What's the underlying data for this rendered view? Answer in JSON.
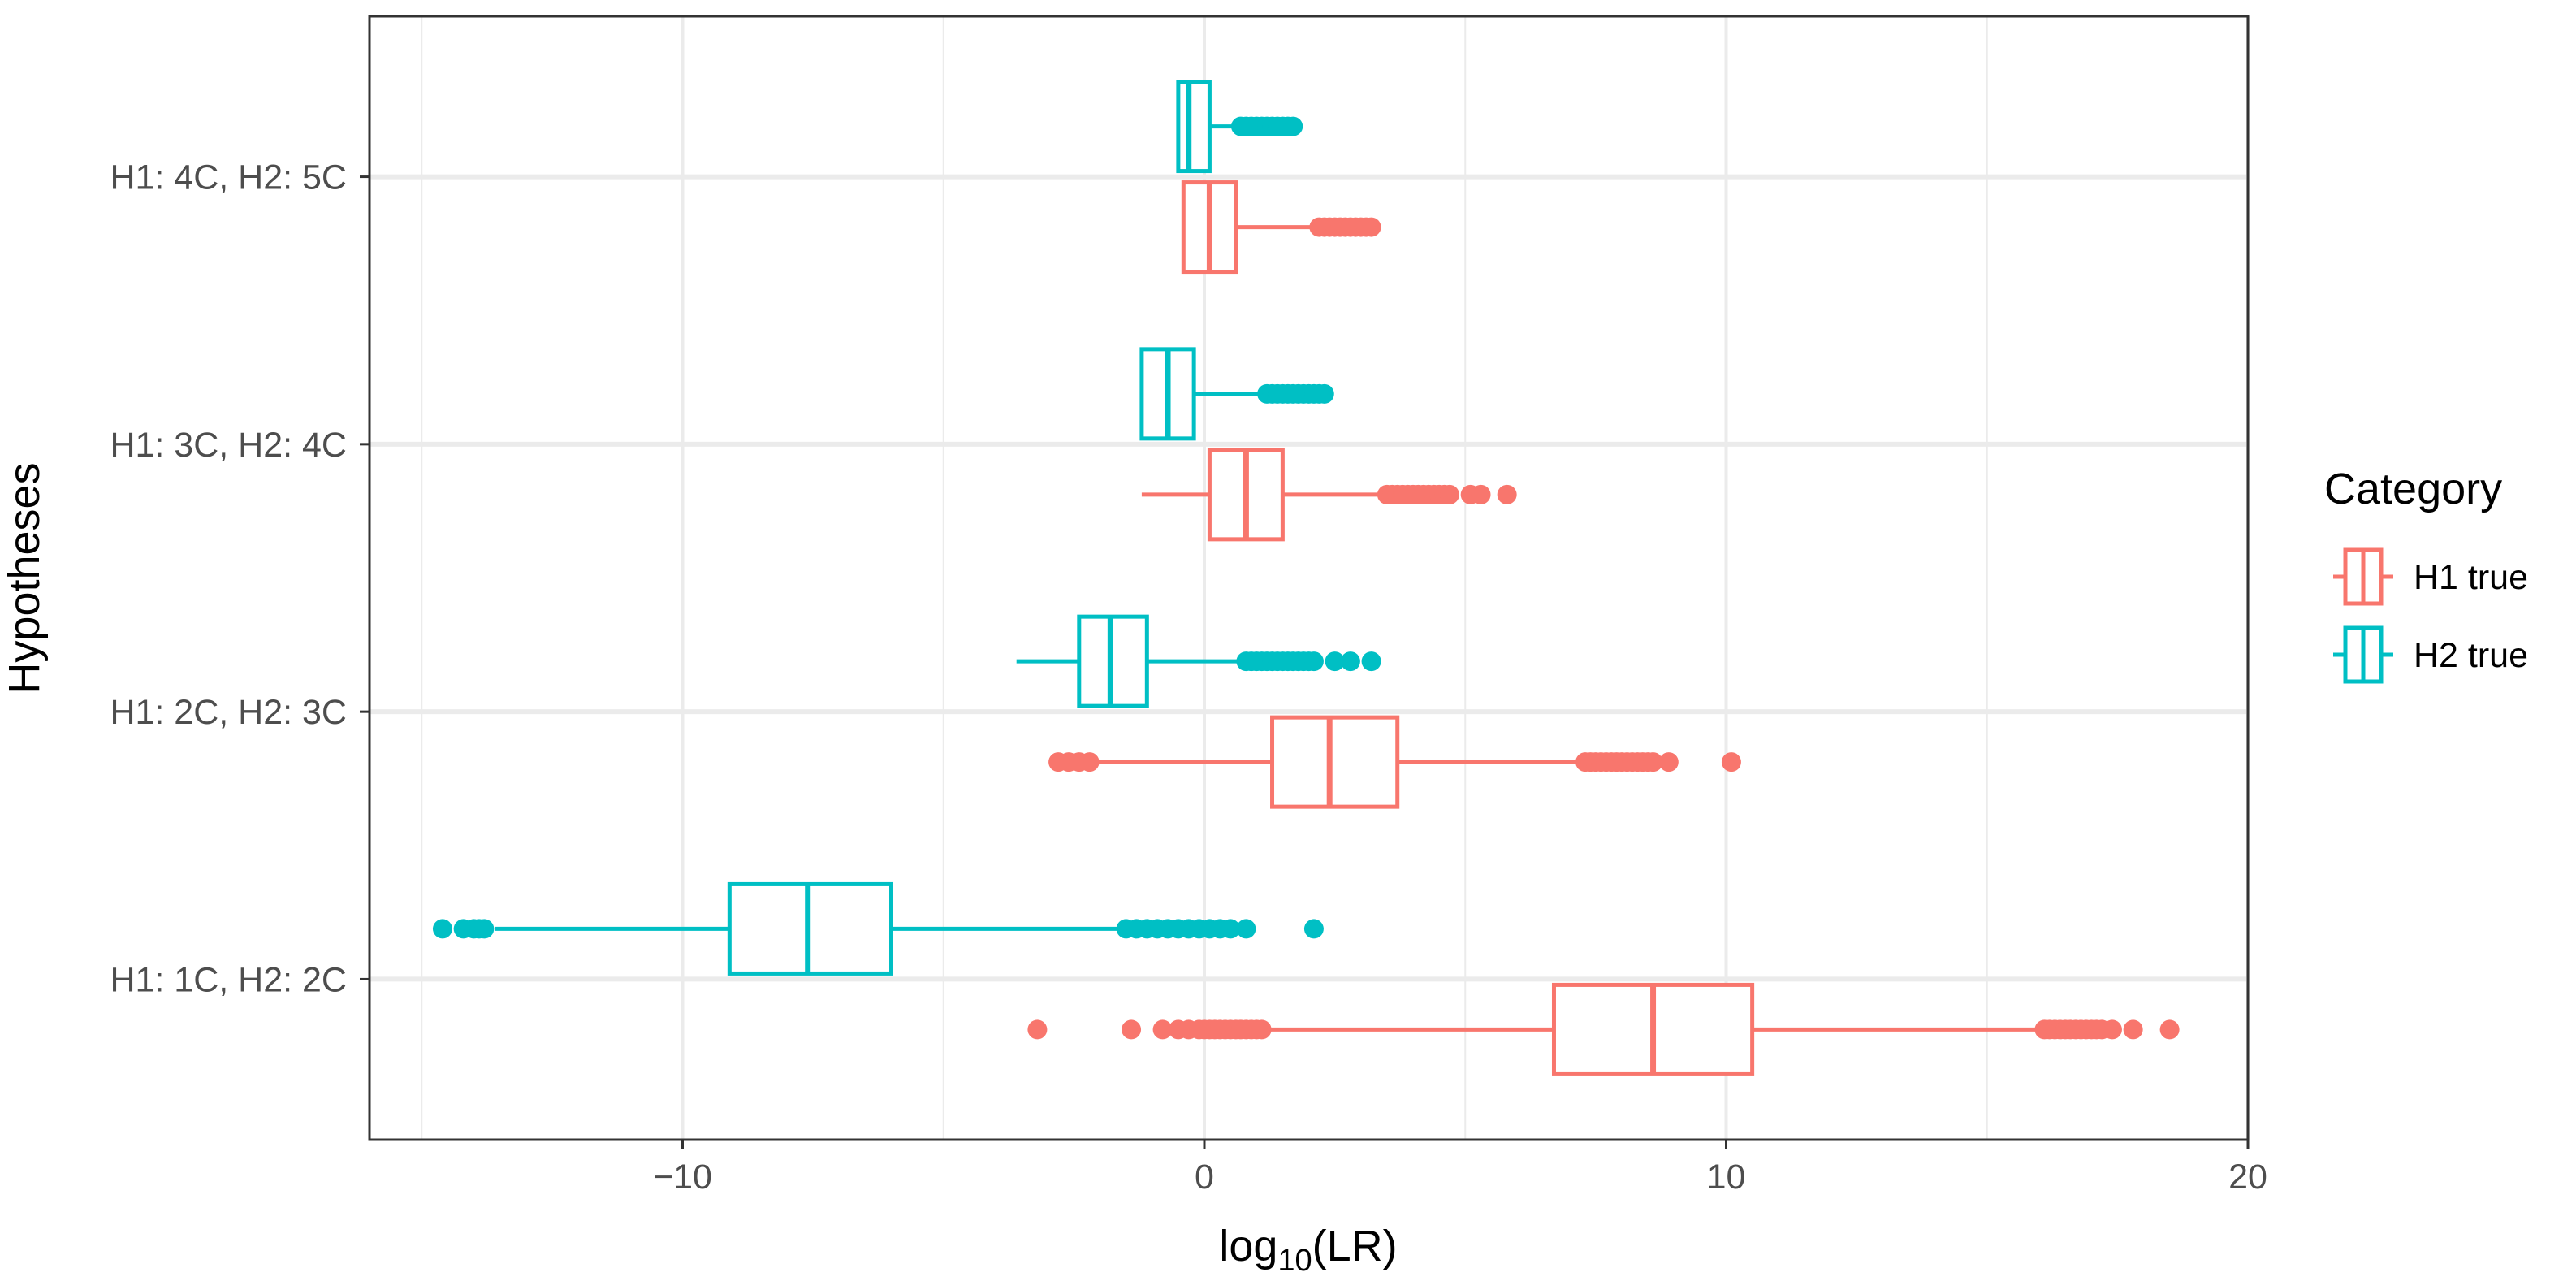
{
  "chart_data": {
    "type": "boxplot",
    "orientation": "horizontal",
    "title": "",
    "xlabel": {
      "base": "log",
      "subscript": "10",
      "rest": "(LR)"
    },
    "ylabel": "Hypotheses",
    "xlim": [
      -16,
      20
    ],
    "xticks": [
      -10,
      0,
      10,
      20
    ],
    "xtick_labels": [
      "−10",
      "0",
      "10",
      "20"
    ],
    "x_minor_gridlines": [
      -15,
      -5,
      5,
      15
    ],
    "categories": [
      "H1: 1C, H2: 2C",
      "H1: 2C, H2: 3C",
      "H1: 3C, H2: 4C",
      "H1: 4C, H2: 5C"
    ],
    "legend": {
      "title": "Category",
      "position": "right",
      "entries": [
        {
          "name": "H1 true",
          "color": "#F8766D"
        },
        {
          "name": "H2 true",
          "color": "#00BFC4"
        }
      ]
    },
    "series": [
      {
        "name": "H1 true",
        "color": "#F8766D",
        "boxes": [
          {
            "category": "H1: 1C, H2: 2C",
            "whisker_low": 1.2,
            "q1": 6.7,
            "median": 8.6,
            "q3": 10.5,
            "whisker_high": 16.0,
            "outliers": [
              -3.2,
              -1.4,
              -0.8,
              -0.5,
              -0.3,
              -0.1,
              0.0,
              0.1,
              0.2,
              0.3,
              0.4,
              0.5,
              0.6,
              0.7,
              0.8,
              0.9,
              1.0,
              1.1,
              16.1,
              16.2,
              16.3,
              16.4,
              16.5,
              16.6,
              16.7,
              16.8,
              16.9,
              17.0,
              17.1,
              17.2,
              17.4,
              17.8,
              18.5
            ]
          },
          {
            "category": "H1: 2C, H2: 3C",
            "whisker_low": -2.1,
            "q1": 1.3,
            "median": 2.4,
            "q3": 3.7,
            "whisker_high": 7.2,
            "outliers": [
              -2.8,
              -2.6,
              -2.4,
              -2.2,
              7.3,
              7.4,
              7.5,
              7.6,
              7.7,
              7.8,
              7.9,
              8.0,
              8.1,
              8.2,
              8.3,
              8.4,
              8.5,
              8.6,
              8.9,
              10.1
            ]
          },
          {
            "category": "H1: 3C, H2: 4C",
            "whisker_low": -1.2,
            "q1": 0.1,
            "median": 0.8,
            "q3": 1.5,
            "whisker_high": 3.4,
            "outliers": [
              3.5,
              3.6,
              3.7,
              3.8,
              3.9,
              4.0,
              4.1,
              4.2,
              4.3,
              4.4,
              4.5,
              4.6,
              4.7,
              5.1,
              5.3,
              5.8
            ]
          },
          {
            "category": "H1: 4C, H2: 5C",
            "whisker_low": -0.4,
            "q1": -0.4,
            "median": 0.1,
            "q3": 0.6,
            "whisker_high": 2.1,
            "outliers": [
              2.2,
              2.3,
              2.4,
              2.5,
              2.6,
              2.7,
              2.8,
              2.9,
              3.0,
              3.1,
              3.2
            ]
          }
        ]
      },
      {
        "name": "H2 true",
        "color": "#00BFC4",
        "boxes": [
          {
            "category": "H1: 1C, H2: 2C",
            "whisker_low": -13.6,
            "q1": -9.1,
            "median": -7.6,
            "q3": -6.0,
            "whisker_high": -1.6,
            "outliers": [
              -14.6,
              -14.2,
              -14.0,
              -13.9,
              -13.8,
              -1.5,
              -1.3,
              -1.1,
              -0.9,
              -0.7,
              -0.5,
              -0.3,
              -0.1,
              0.1,
              0.3,
              0.5,
              0.8,
              2.1
            ]
          },
          {
            "category": "H1: 2C, H2: 3C",
            "whisker_low": -3.6,
            "q1": -2.4,
            "median": -1.8,
            "q3": -1.1,
            "whisker_high": 0.7,
            "outliers": [
              0.8,
              0.9,
              1.0,
              1.1,
              1.2,
              1.3,
              1.4,
              1.5,
              1.6,
              1.7,
              1.8,
              1.9,
              2.0,
              2.1,
              2.5,
              2.8,
              3.2
            ]
          },
          {
            "category": "H1: 3C, H2: 4C",
            "whisker_low": -1.2,
            "q1": -1.2,
            "median": -0.7,
            "q3": -0.2,
            "whisker_high": 1.1,
            "outliers": [
              1.2,
              1.3,
              1.4,
              1.5,
              1.6,
              1.7,
              1.8,
              1.9,
              2.0,
              2.1,
              2.2,
              2.3
            ]
          },
          {
            "category": "H1: 4C, H2: 5C",
            "whisker_low": -0.5,
            "q1": -0.5,
            "median": -0.3,
            "q3": 0.1,
            "whisker_high": 0.6,
            "outliers": [
              0.7,
              0.8,
              0.9,
              1.0,
              1.1,
              1.2,
              1.3,
              1.4,
              1.5,
              1.6,
              1.7
            ]
          }
        ]
      }
    ]
  }
}
